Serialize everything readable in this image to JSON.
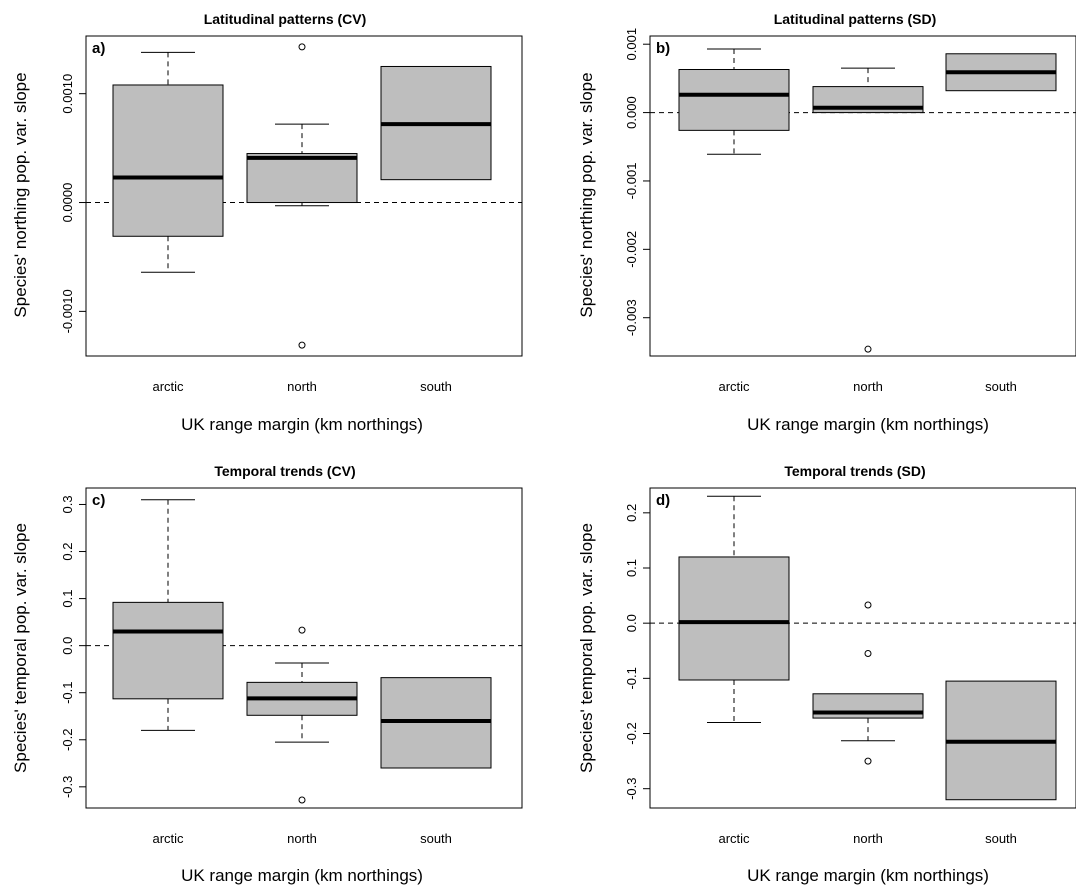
{
  "figure": {
    "panels": [
      {
        "title": "Latitudinal patterns (CV)",
        "label": "a)",
        "ylabel": "Species' northing pop. var. slope",
        "xlabel": "UK range margin (km northings)"
      },
      {
        "title": "Latitudinal patterns (SD)",
        "label": "b)",
        "ylabel": "Species' northing pop. var. slope",
        "xlabel": "UK range margin (km northings)"
      },
      {
        "title": "Temporal trends (CV)",
        "label": "c)",
        "ylabel": "Species' temporal pop. var. slope",
        "xlabel": "UK range margin (km northings)"
      },
      {
        "title": "Temporal trends (SD)",
        "label": "d)",
        "ylabel": "Species' temporal pop. var. slope",
        "xlabel": "UK range margin (km northings)"
      }
    ]
  },
  "chart_data": [
    {
      "type": "box",
      "title": "Latitudinal patterns (CV)",
      "panel_label": "a)",
      "xlabel": "UK range margin (km northings)",
      "ylabel": "Species' northing pop. var. slope",
      "categories": [
        "arctic",
        "north",
        "south"
      ],
      "ylim": [
        -0.00141,
        0.00153
      ],
      "yticks": [
        -0.001,
        0.0,
        0.001
      ],
      "ytick_labels": [
        "-0.0010",
        "0.0000",
        "0.0010"
      ],
      "reference_line": 0,
      "boxes": [
        {
          "category": "arctic",
          "min": -0.00064,
          "q1": -0.00031,
          "median": 0.00023,
          "q3": 0.00108,
          "max": 0.00138,
          "outliers": []
        },
        {
          "category": "north",
          "min": -3e-05,
          "q1": 0.0,
          "median": 0.00041,
          "q3": 0.00045,
          "max": 0.00072,
          "outliers": [
            0.00143,
            -0.00131
          ]
        },
        {
          "category": "south",
          "min": 0.00021,
          "q1": 0.00021,
          "median": 0.00072,
          "q3": 0.00125,
          "max": 0.00125,
          "outliers": []
        }
      ]
    },
    {
      "type": "box",
      "title": "Latitudinal patterns (SD)",
      "panel_label": "b)",
      "xlabel": "UK range margin (km northings)",
      "ylabel": "Species' northing pop. var. slope",
      "categories": [
        "arctic",
        "north",
        "south"
      ],
      "ylim": [
        -0.00356,
        0.00112
      ],
      "yticks": [
        -0.003,
        -0.002,
        -0.001,
        0.0,
        0.001
      ],
      "ytick_labels": [
        "-0.003",
        "-0.002",
        "-0.001",
        "0.000",
        "0.001"
      ],
      "reference_line": 0,
      "boxes": [
        {
          "category": "arctic",
          "min": -0.00061,
          "q1": -0.00026,
          "median": 0.00026,
          "q3": 0.00063,
          "max": 0.00093,
          "outliers": []
        },
        {
          "category": "north",
          "min": 0.0,
          "q1": 0.0,
          "median": 7e-05,
          "q3": 0.00038,
          "max": 0.00065,
          "outliers": [
            -0.00346
          ]
        },
        {
          "category": "south",
          "min": 0.00032,
          "q1": 0.00032,
          "median": 0.00059,
          "q3": 0.00086,
          "max": 0.00086,
          "outliers": []
        }
      ]
    },
    {
      "type": "box",
      "title": "Temporal trends (CV)",
      "panel_label": "c)",
      "xlabel": "UK range margin (km northings)",
      "ylabel": "Species' temporal pop. var. slope",
      "categories": [
        "arctic",
        "north",
        "south"
      ],
      "ylim": [
        -0.345,
        0.335
      ],
      "yticks": [
        -0.3,
        -0.2,
        -0.1,
        0.0,
        0.1,
        0.2,
        0.3
      ],
      "ytick_labels": [
        "-0.3",
        "-0.2",
        "-0.1",
        "0.0",
        "0.1",
        "0.2",
        "0.3"
      ],
      "reference_line": 0,
      "boxes": [
        {
          "category": "arctic",
          "min": -0.18,
          "q1": -0.113,
          "median": 0.03,
          "q3": 0.092,
          "max": 0.31,
          "outliers": []
        },
        {
          "category": "north",
          "min": -0.205,
          "q1": -0.148,
          "median": -0.112,
          "q3": -0.078,
          "max": -0.037,
          "outliers": [
            0.033,
            -0.328
          ]
        },
        {
          "category": "south",
          "min": -0.26,
          "q1": -0.26,
          "median": -0.16,
          "q3": -0.068,
          "max": -0.068,
          "outliers": []
        }
      ]
    },
    {
      "type": "box",
      "title": "Temporal trends (SD)",
      "panel_label": "d)",
      "xlabel": "UK range margin (km northings)",
      "ylabel": "Species' temporal pop. var. slope",
      "categories": [
        "arctic",
        "north",
        "south"
      ],
      "ylim": [
        -0.335,
        0.245
      ],
      "yticks": [
        -0.3,
        -0.2,
        -0.1,
        0.0,
        0.1,
        0.2
      ],
      "ytick_labels": [
        "-0.3",
        "-0.2",
        "-0.1",
        "0.0",
        "0.1",
        "0.2"
      ],
      "reference_line": 0,
      "boxes": [
        {
          "category": "arctic",
          "min": -0.18,
          "q1": -0.103,
          "median": 0.002,
          "q3": 0.12,
          "max": 0.23,
          "outliers": []
        },
        {
          "category": "north",
          "min": -0.213,
          "q1": -0.172,
          "median": -0.162,
          "q3": -0.128,
          "max": -0.128,
          "outliers": [
            0.033,
            -0.055,
            -0.25
          ]
        },
        {
          "category": "south",
          "min": -0.32,
          "q1": -0.32,
          "median": -0.215,
          "q3": -0.105,
          "max": -0.105,
          "outliers": []
        }
      ]
    }
  ]
}
